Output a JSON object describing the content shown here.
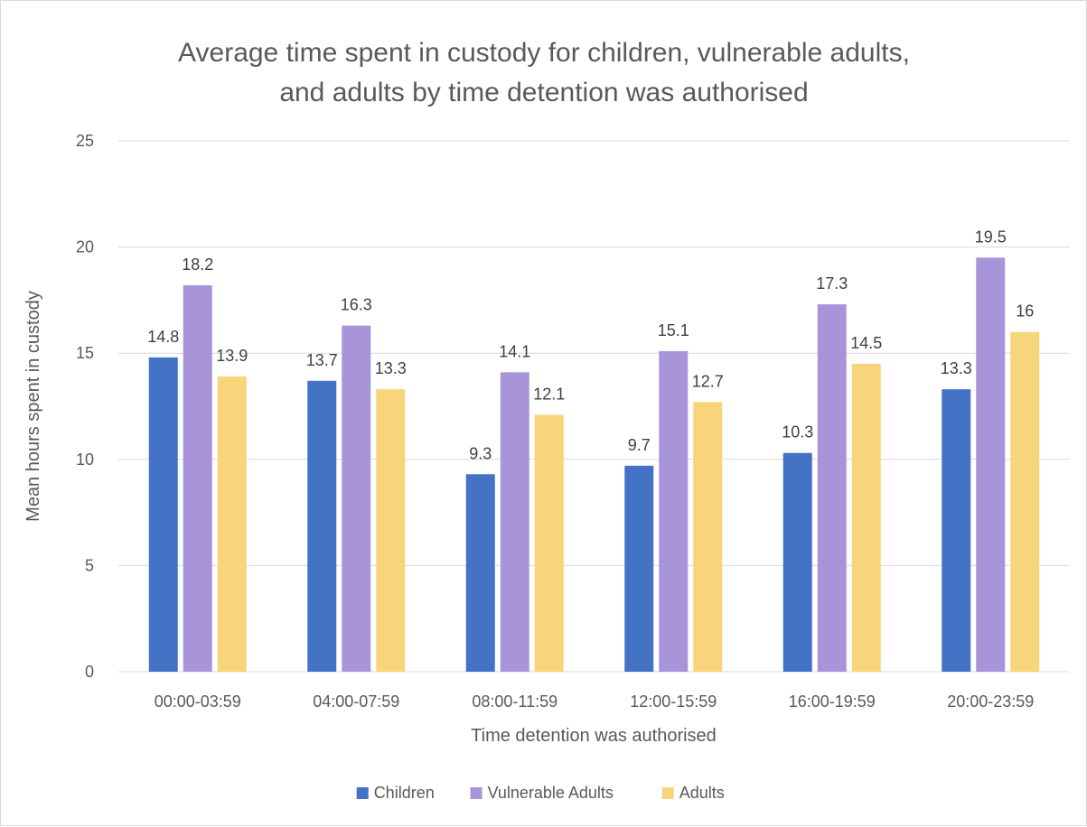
{
  "chart_data": {
    "type": "bar",
    "title_lines": [
      "Average time spent in custody for children, vulnerable adults,",
      "and adults by time detention was authorised"
    ],
    "xlabel": "Time detention was authorised",
    "ylabel": "Mean hours spent in custody",
    "ylim": [
      0,
      25
    ],
    "yticks": [
      0,
      5,
      10,
      15,
      20,
      25
    ],
    "grid": true,
    "legend_position": "bottom",
    "categories": [
      "00:00-03:59",
      "04:00-07:59",
      "08:00-11:59",
      "12:00-15:59",
      "16:00-19:59",
      "20:00-23:59"
    ],
    "series": [
      {
        "name": "Children",
        "color": "#4472c4",
        "values": [
          14.8,
          13.7,
          9.3,
          9.7,
          10.3,
          13.3
        ]
      },
      {
        "name": "Vulnerable Adults",
        "color": "#a794d9",
        "values": [
          18.2,
          16.3,
          14.1,
          15.1,
          17.3,
          19.5
        ]
      },
      {
        "name": "Adults",
        "color": "#f8d57a",
        "values": [
          13.9,
          13.3,
          12.1,
          12.7,
          14.5,
          16
        ]
      }
    ]
  }
}
